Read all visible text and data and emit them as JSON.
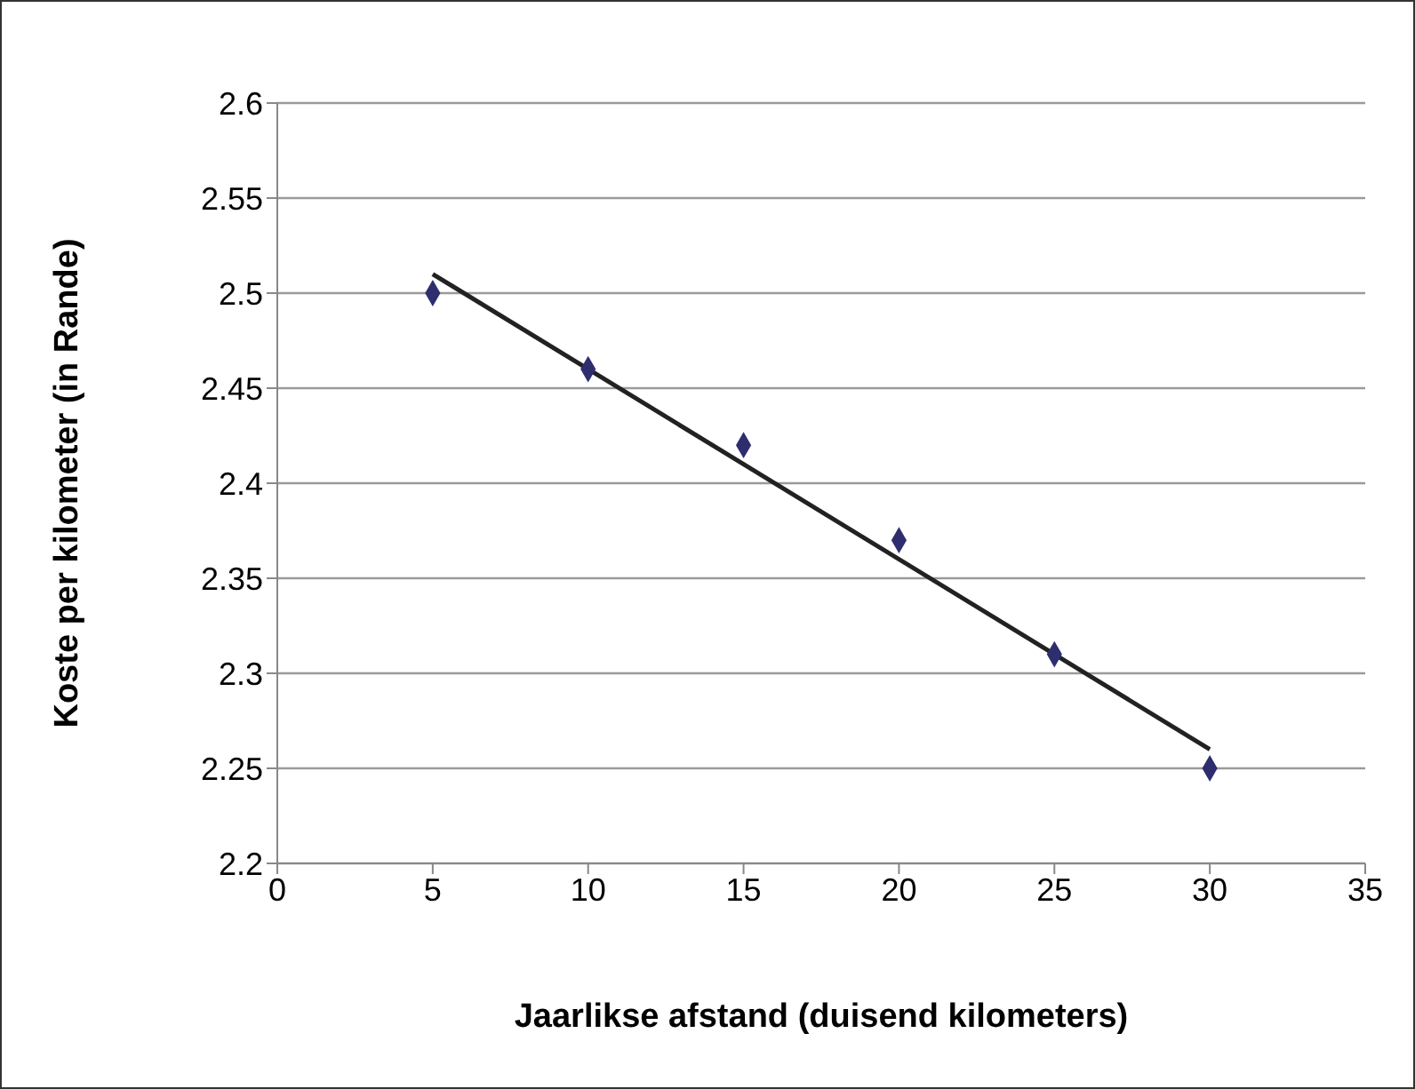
{
  "chart_data": {
    "type": "scatter",
    "xlabel": "Jaarlikse afstand (duisend  kilometers)",
    "ylabel": "Koste per kilometer (in Rande)",
    "x": [
      5,
      10,
      15,
      20,
      25,
      30
    ],
    "series": [
      {
        "type": "scatter",
        "color": "#2e2e6e",
        "marker": "diamond",
        "values": [
          2.5,
          2.46,
          2.42,
          2.37,
          2.31,
          2.25
        ]
      },
      {
        "type": "line",
        "color": "#222222",
        "marker": "none",
        "x": [
          5,
          30
        ],
        "values": [
          2.51,
          2.26
        ]
      }
    ],
    "xlim": [
      0,
      35
    ],
    "xticks": [
      0,
      5,
      10,
      15,
      20,
      25,
      30,
      35
    ],
    "ylim": [
      2.2,
      2.6
    ],
    "yticks": [
      2.2,
      2.25,
      2.3,
      2.35,
      2.4,
      2.45,
      2.5,
      2.55,
      2.6
    ],
    "grid": "y"
  }
}
